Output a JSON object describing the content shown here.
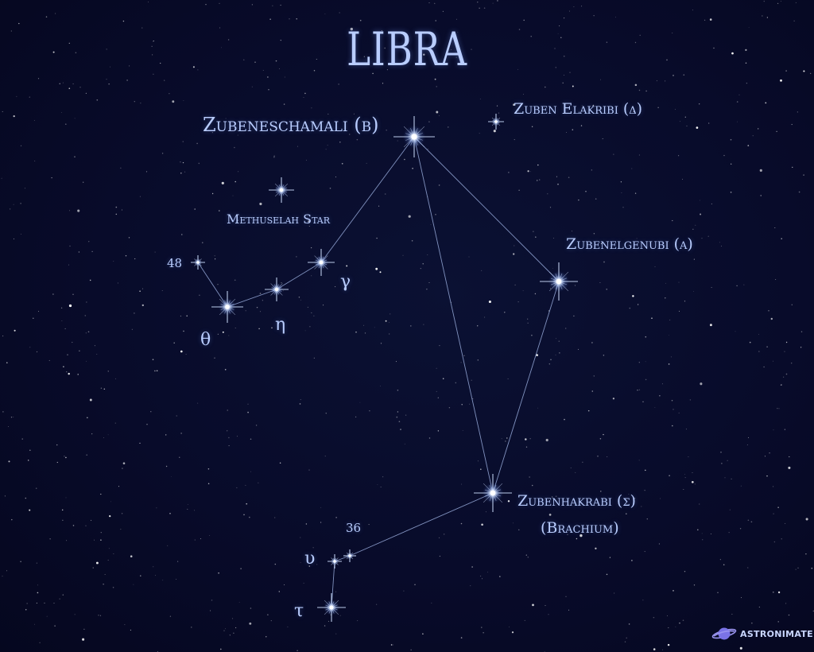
{
  "title": "LIBRA",
  "labels": {
    "zubeneschamali": "Zubeneschamali (β)",
    "zuben_elakribi": "Zuben Elakribi (δ)",
    "methuselah": "Methuselah Star",
    "zubenelgenubi": "Zubenelgenubi (α)",
    "n48": "48",
    "gamma": "γ",
    "eta": "η",
    "theta": "θ",
    "zubenhakrabi": "Zubenhakrabi (σ)",
    "brachium": "(Brachium)",
    "n36": "36",
    "upsilon": "υ",
    "tau": "τ"
  },
  "brand": {
    "name": "ASTRONIMATE",
    "icon": "planet-icon"
  },
  "colors": {
    "background": "#070a26",
    "label": "#b9cdff",
    "line": "#a9bff0",
    "star_core": "#ffffff",
    "star_glow": "#9fc0ff",
    "logo": "#7a73e6"
  }
}
